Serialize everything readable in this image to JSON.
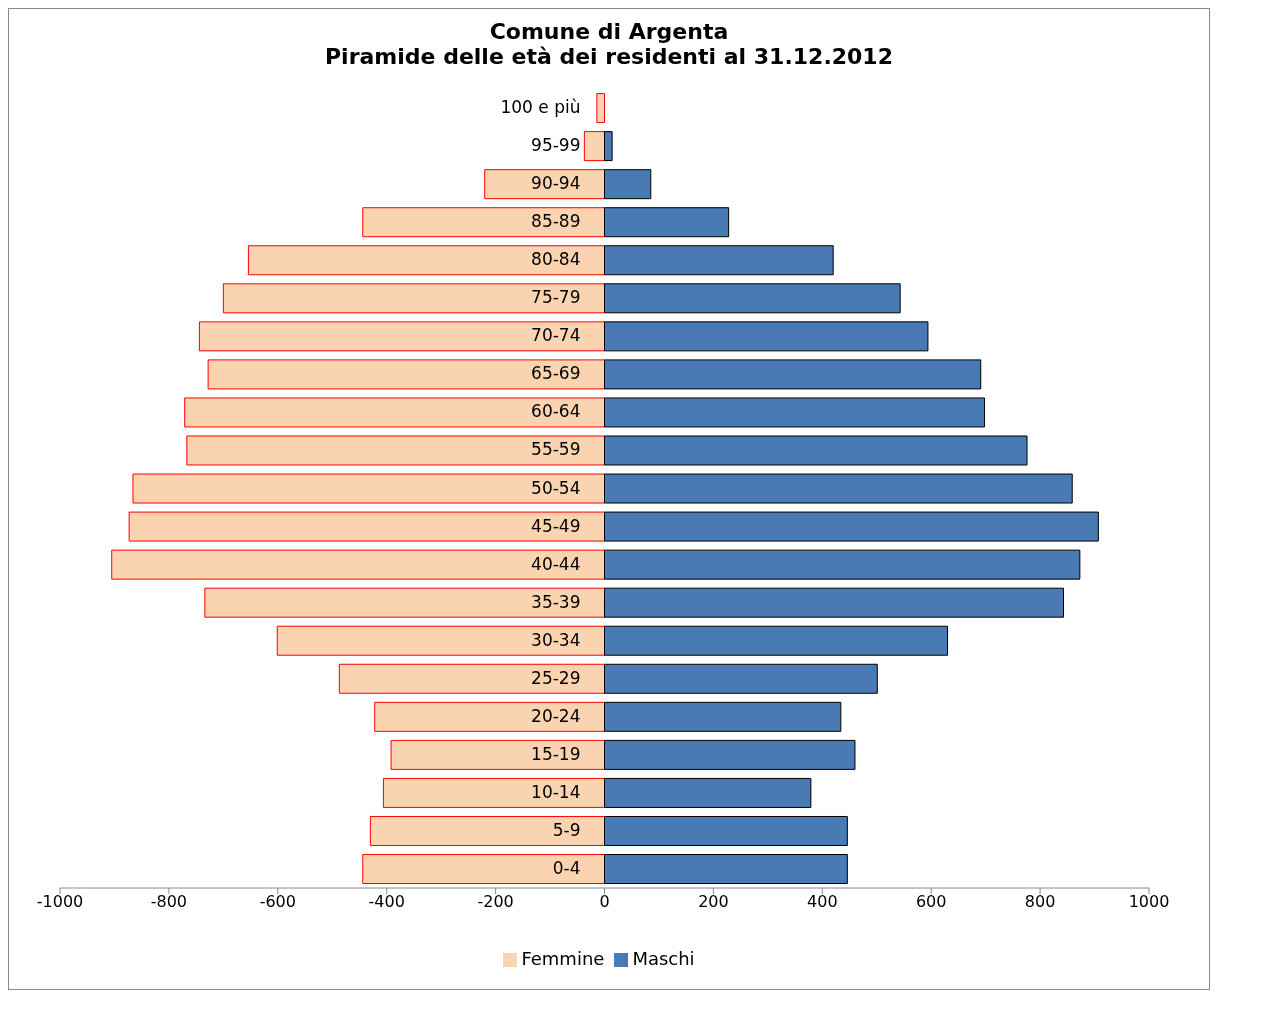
{
  "chart_data": {
    "type": "bar",
    "orientation": "horizontal",
    "stacked": true,
    "title": "Comune di Argenta",
    "subtitle": "Piramide delle età dei residenti al 31.12.2012",
    "categories": [
      "100 e più",
      "95-99",
      "90-94",
      "85-89",
      "80-84",
      "75-79",
      "70-74",
      "65-69",
      "60-64",
      "55-59",
      "50-54",
      "45-49",
      "40-44",
      "35-39",
      "30-34",
      "25-29",
      "20-24",
      "15-19",
      "10-14",
      "5-9",
      "0-4"
    ],
    "series": [
      {
        "name": "Femmine",
        "color": "#fad4b0",
        "values": [
          -14,
          -37,
          -220,
          -444,
          -654,
          -700,
          -744,
          -728,
          -771,
          -767,
          -866,
          -873,
          -905,
          -734,
          -601,
          -487,
          -422,
          -392,
          -406,
          -430,
          -444
        ]
      },
      {
        "name": "Maschi",
        "color": "#4a7ab4",
        "values": [
          0,
          14,
          85,
          228,
          420,
          543,
          594,
          691,
          698,
          776,
          859,
          907,
          873,
          843,
          630,
          501,
          434,
          460,
          379,
          446,
          446
        ]
      }
    ],
    "xlim": [
      -1000,
      1000
    ],
    "xticks": [
      -1000,
      -800,
      -600,
      -400,
      -200,
      0,
      200,
      400,
      600,
      800,
      1000
    ],
    "legend": "bottom"
  }
}
